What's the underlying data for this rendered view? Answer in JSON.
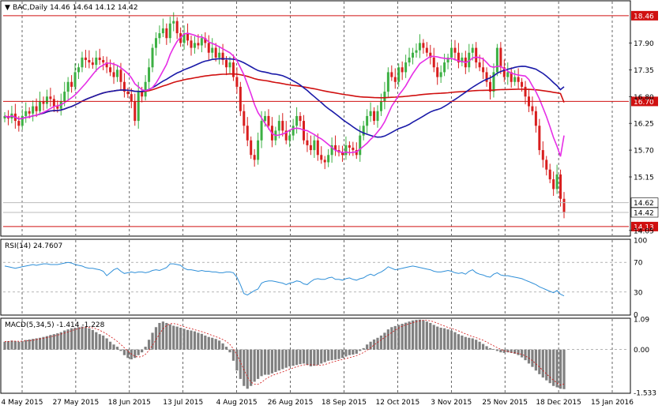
{
  "header": {
    "symbol_line": "BAC,Daily  14.46 14.64 14.12 14.42",
    "rsi_title": "RSI(14) 24.7607",
    "macd_title": "MACD(5,34,5) -1.414 -1.228"
  },
  "colors": {
    "bull": "#3cb043",
    "bear": "#d81e1e",
    "ma_fast": "#e62ee6",
    "ma_mid": "#1a1aa8",
    "ma_slow": "#d01010",
    "level": "#d01010",
    "rsi": "#2f8fd8",
    "macd_hist": "#808080",
    "macd_signal": "#d01010",
    "grid": "#000000"
  },
  "chart_data": [
    {
      "type": "candlestick",
      "panel": "price",
      "ylim": [
        13.95,
        18.75
      ],
      "price_ticks": [
        "18.46",
        "17.90",
        "17.35",
        "16.80",
        "16.70",
        "16.25",
        "15.70",
        "15.15",
        "14.62",
        "14.42",
        "14.13",
        "14.05"
      ],
      "highlighted_levels": [
        {
          "value": 18.46,
          "label": "18.46",
          "color": "#d01010"
        },
        {
          "value": 16.7,
          "label": "16.70",
          "color": "#d01010"
        },
        {
          "value": 14.62,
          "label": "14.62",
          "color": "#ffffff"
        },
        {
          "value": 14.13,
          "label": "14.13",
          "color": "#d01010"
        },
        {
          "value": 14.42,
          "label": "14.42",
          "color": "#ffffff"
        }
      ],
      "date_labels": [
        "4 May 2015",
        "27 May 2015",
        "18 Jun 2015",
        "13 Jul 2015",
        "4 Aug 2015",
        "26 Aug 2015",
        "18 Sep 2015",
        "12 Oct 2015",
        "3 Nov 2015",
        "25 Nov 2015",
        "18 Dec 2015",
        "15 Jan 2016"
      ],
      "closes": [
        16.4,
        16.35,
        16.45,
        16.3,
        16.2,
        16.4,
        16.5,
        16.45,
        16.6,
        16.5,
        16.7,
        16.65,
        16.8,
        16.75,
        16.6,
        16.55,
        16.7,
        16.9,
        17.1,
        17.0,
        17.3,
        17.4,
        17.6,
        17.55,
        17.5,
        17.45,
        17.6,
        17.55,
        17.5,
        17.4,
        17.3,
        17.2,
        17.35,
        17.1,
        16.9,
        16.85,
        16.7,
        16.3,
        16.9,
        16.8,
        17.1,
        17.4,
        17.8,
        18.0,
        18.1,
        18.2,
        18.0,
        18.3,
        18.35,
        18.1,
        17.9,
        18.1,
        17.95,
        17.8,
        17.9,
        17.85,
        18.0,
        17.9,
        17.7,
        17.8,
        17.6,
        17.7,
        17.55,
        17.4,
        17.5,
        17.2,
        17.0,
        16.5,
        16.2,
        15.9,
        15.6,
        15.5,
        15.9,
        16.3,
        16.4,
        16.2,
        15.9,
        16.1,
        16.3,
        16.1,
        15.9,
        16.0,
        16.2,
        16.4,
        16.3,
        15.9,
        15.8,
        15.7,
        15.9,
        15.6,
        15.5,
        15.45,
        15.6,
        15.8,
        15.7,
        15.65,
        15.6,
        15.8,
        15.75,
        15.7,
        15.6,
        16.0,
        16.2,
        16.4,
        16.5,
        16.3,
        16.5,
        16.7,
        16.9,
        17.3,
        17.2,
        17.1,
        17.4,
        17.3,
        17.5,
        17.6,
        17.7,
        17.75,
        17.9,
        17.8,
        17.7,
        17.6,
        17.4,
        17.2,
        17.3,
        17.5,
        17.6,
        17.8,
        17.7,
        17.5,
        17.6,
        17.4,
        17.7,
        17.8,
        17.5,
        17.4,
        17.3,
        17.1,
        16.9,
        17.3,
        17.8,
        17.4,
        17.2,
        17.3,
        17.1,
        17.2,
        17.1,
        17.0,
        16.8,
        16.6,
        16.5,
        16.2,
        15.7,
        15.5,
        15.3,
        15.1,
        14.9,
        15.2,
        14.7,
        14.42
      ],
      "ma_fast_endpoint": 16.0,
      "ma_mid_endpoint": 17.0,
      "ma_slow_endpoint": 16.68
    },
    {
      "type": "line",
      "panel": "rsi",
      "name": "RSI(14)",
      "ylim": [
        0,
        100
      ],
      "y_ticks": [
        "100",
        "70",
        "30",
        "0"
      ],
      "levels": [
        70,
        30
      ],
      "values": [
        65,
        64,
        63,
        62,
        63,
        64,
        65,
        66,
        67,
        66,
        67,
        68,
        68,
        67,
        67,
        67,
        68,
        69,
        70,
        69,
        67,
        66,
        65,
        63,
        62,
        62,
        61,
        60,
        58,
        52,
        56,
        60,
        62,
        58,
        55,
        56,
        57,
        56,
        57,
        57,
        56,
        57,
        59,
        60,
        59,
        61,
        63,
        68,
        68,
        67,
        66,
        62,
        60,
        60,
        59,
        58,
        59,
        58,
        58,
        57,
        57,
        56,
        56,
        57,
        57,
        56,
        50,
        40,
        28,
        26,
        29,
        32,
        34,
        42,
        44,
        45,
        45,
        44,
        43,
        42,
        40,
        42,
        43,
        45,
        44,
        41,
        40,
        44,
        47,
        48,
        47,
        47,
        49,
        50,
        47,
        47,
        46,
        48,
        49,
        47,
        46,
        48,
        49,
        52,
        54,
        52,
        55,
        57,
        60,
        64,
        62,
        60,
        61,
        62,
        63,
        64,
        65,
        64,
        63,
        62,
        61,
        60,
        58,
        57,
        57,
        58,
        59,
        58,
        56,
        55,
        56,
        54,
        58,
        60,
        56,
        54,
        53,
        51,
        50,
        54,
        56,
        53,
        52,
        52,
        51,
        50,
        49,
        48,
        46,
        44,
        42,
        40,
        37,
        35,
        33,
        31,
        29,
        32,
        27,
        24.76
      ]
    },
    {
      "type": "bar",
      "panel": "macd",
      "name": "MACD(5,34,5)",
      "ylim": [
        -1.533,
        1.09
      ],
      "y_ticks": [
        "1.09",
        "0.00",
        "-1.533"
      ],
      "values": [
        0.28,
        0.3,
        0.32,
        0.3,
        0.28,
        0.3,
        0.34,
        0.36,
        0.38,
        0.4,
        0.42,
        0.45,
        0.48,
        0.52,
        0.55,
        0.58,
        0.62,
        0.68,
        0.72,
        0.76,
        0.78,
        0.8,
        0.82,
        0.8,
        0.76,
        0.7,
        0.62,
        0.55,
        0.5,
        0.4,
        0.28,
        0.18,
        0.1,
        -0.05,
        -0.2,
        -0.3,
        -0.35,
        -0.3,
        -0.2,
        -0.1,
        0.1,
        0.35,
        0.6,
        0.8,
        0.95,
        1.0,
        0.95,
        0.9,
        0.85,
        0.82,
        0.78,
        0.74,
        0.7,
        0.68,
        0.65,
        0.6,
        0.56,
        0.5,
        0.45,
        0.42,
        0.38,
        0.32,
        0.22,
        0.1,
        -0.1,
        -0.4,
        -0.75,
        -1.05,
        -1.3,
        -1.4,
        -1.3,
        -1.15,
        -1.05,
        -0.95,
        -0.9,
        -0.9,
        -0.85,
        -0.8,
        -0.75,
        -0.7,
        -0.65,
        -0.6,
        -0.58,
        -0.55,
        -0.52,
        -0.5,
        -0.55,
        -0.6,
        -0.58,
        -0.55,
        -0.5,
        -0.45,
        -0.4,
        -0.38,
        -0.36,
        -0.34,
        -0.3,
        -0.25,
        -0.2,
        -0.18,
        -0.15,
        -0.05,
        0.05,
        0.18,
        0.28,
        0.36,
        0.42,
        0.5,
        0.6,
        0.72,
        0.8,
        0.84,
        0.88,
        0.92,
        0.96,
        1.0,
        1.04,
        1.06,
        1.07,
        1.05,
        1.0,
        0.95,
        0.88,
        0.82,
        0.78,
        0.76,
        0.72,
        0.68,
        0.62,
        0.55,
        0.5,
        0.45,
        0.42,
        0.4,
        0.35,
        0.28,
        0.2,
        0.12,
        0.05,
        0.02,
        -0.05,
        -0.1,
        -0.12,
        -0.1,
        -0.12,
        -0.15,
        -0.2,
        -0.28,
        -0.38,
        -0.5,
        -0.62,
        -0.75,
        -0.88,
        -1.0,
        -1.1,
        -1.2,
        -1.3,
        -1.35,
        -1.4,
        -1.414
      ],
      "signal_final": -1.228
    }
  ]
}
